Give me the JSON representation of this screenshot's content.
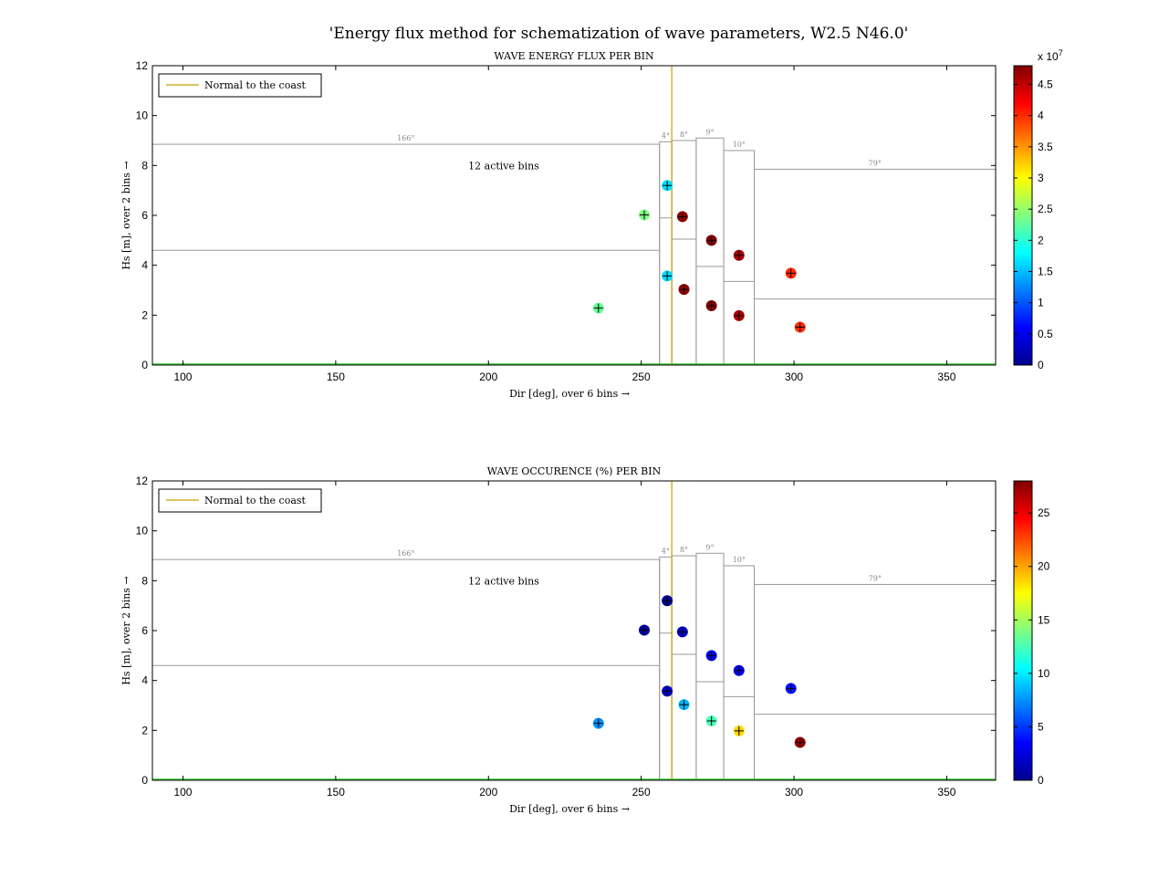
{
  "suptitle": "'Energy flux method for schematization of wave parameters, W2.5 N46.0'",
  "colors": {
    "normal_line": "#c8a000",
    "baseline": "#33cc33",
    "bin_edge": "#999999",
    "axes": "#000000"
  },
  "chart_data": [
    {
      "type": "scatter",
      "title": "WAVE ENERGY FLUX PER BIN",
      "xlabel": "Dir [deg], over 6 bins →",
      "ylabel": "Hs [m], over 2 bins →",
      "xlim": [
        90,
        366
      ],
      "ylim": [
        0,
        12
      ],
      "xticks": [
        100,
        150,
        200,
        250,
        300,
        350
      ],
      "yticks": [
        0,
        2,
        4,
        6,
        8,
        10,
        12
      ],
      "legend": {
        "label": "Normal to the coast",
        "position": "top-left"
      },
      "normal_to_coast": 260,
      "annotation": "12 active bins",
      "bins": [
        {
          "dir_range": [
            90,
            256
          ],
          "hs_split": 4.6,
          "hs_top": 8.85,
          "label": "166°"
        },
        {
          "dir_range": [
            256,
            260
          ],
          "hs_split": 5.9,
          "hs_top": 8.95,
          "label": "4°"
        },
        {
          "dir_range": [
            260,
            268
          ],
          "hs_split": 5.05,
          "hs_top": 9.0,
          "label": "8°"
        },
        {
          "dir_range": [
            268,
            277
          ],
          "hs_split": 3.95,
          "hs_top": 9.1,
          "label": "9°"
        },
        {
          "dir_range": [
            277,
            287
          ],
          "hs_split": 3.35,
          "hs_top": 8.6,
          "label": "10°"
        },
        {
          "dir_range": [
            287,
            366
          ],
          "hs_split": 2.65,
          "hs_top": 7.85,
          "label": "79°"
        }
      ],
      "colorbar": {
        "min": 0,
        "max": 48000000,
        "ticks": [
          0,
          0.5,
          1,
          1.5,
          2,
          2.5,
          3,
          3.5,
          4,
          4.5
        ],
        "tick_scale": 10000000,
        "multiplier_label": "x 10",
        "multiplier_exp": "7",
        "colormap": "jet"
      },
      "points": [
        {
          "x": 236,
          "y": 2.28,
          "c": 23000000
        },
        {
          "x": 251,
          "y": 6.02,
          "c": 24000000
        },
        {
          "x": 258.5,
          "y": 3.57,
          "c": 16500000
        },
        {
          "x": 258.5,
          "y": 7.2,
          "c": 16500000
        },
        {
          "x": 264,
          "y": 3.03,
          "c": 47000000
        },
        {
          "x": 263.5,
          "y": 5.95,
          "c": 47000000
        },
        {
          "x": 273,
          "y": 2.38,
          "c": 48000000
        },
        {
          "x": 273,
          "y": 5.0,
          "c": 48000000
        },
        {
          "x": 282,
          "y": 1.98,
          "c": 46000000
        },
        {
          "x": 282,
          "y": 4.4,
          "c": 46000000
        },
        {
          "x": 299,
          "y": 3.68,
          "c": 40000000
        },
        {
          "x": 302,
          "y": 1.52,
          "c": 40000000
        }
      ]
    },
    {
      "type": "scatter",
      "title": "WAVE OCCURENCE (%) PER BIN",
      "xlabel": "Dir [deg], over 6 bins →",
      "ylabel": "Hs [m], over 2 bins →",
      "xlim": [
        90,
        366
      ],
      "ylim": [
        0,
        12
      ],
      "xticks": [
        100,
        150,
        200,
        250,
        300,
        350
      ],
      "yticks": [
        0,
        2,
        4,
        6,
        8,
        10,
        12
      ],
      "legend": {
        "label": "Normal to the coast",
        "position": "top-left"
      },
      "normal_to_coast": 260,
      "annotation": "12 active bins",
      "bins": [
        {
          "dir_range": [
            90,
            256
          ],
          "hs_split": 4.6,
          "hs_top": 8.85,
          "label": "166°"
        },
        {
          "dir_range": [
            256,
            260
          ],
          "hs_split": 5.9,
          "hs_top": 8.95,
          "label": "4°"
        },
        {
          "dir_range": [
            260,
            268
          ],
          "hs_split": 5.05,
          "hs_top": 9.0,
          "label": "8°"
        },
        {
          "dir_range": [
            268,
            277
          ],
          "hs_split": 3.95,
          "hs_top": 9.1,
          "label": "9°"
        },
        {
          "dir_range": [
            277,
            287
          ],
          "hs_split": 3.35,
          "hs_top": 8.6,
          "label": "10°"
        },
        {
          "dir_range": [
            287,
            366
          ],
          "hs_split": 2.65,
          "hs_top": 7.85,
          "label": "79°"
        }
      ],
      "colorbar": {
        "min": 0,
        "max": 28,
        "ticks": [
          0,
          5,
          10,
          15,
          20,
          25
        ],
        "tick_scale": 1,
        "multiplier_label": "",
        "multiplier_exp": "",
        "colormap": "jet"
      },
      "points": [
        {
          "x": 236,
          "y": 2.28,
          "c": 7.5
        },
        {
          "x": 251,
          "y": 6.02,
          "c": 1.0
        },
        {
          "x": 258.5,
          "y": 3.57,
          "c": 2.0
        },
        {
          "x": 258.5,
          "y": 7.2,
          "c": 0.5
        },
        {
          "x": 264,
          "y": 3.03,
          "c": 8.5
        },
        {
          "x": 263.5,
          "y": 5.95,
          "c": 2.0
        },
        {
          "x": 273,
          "y": 2.38,
          "c": 12.5
        },
        {
          "x": 273,
          "y": 5.0,
          "c": 3.0
        },
        {
          "x": 282,
          "y": 1.98,
          "c": 18.5
        },
        {
          "x": 282,
          "y": 4.4,
          "c": 3.0
        },
        {
          "x": 299,
          "y": 3.68,
          "c": 4.0
        },
        {
          "x": 302,
          "y": 1.52,
          "c": 27.5
        }
      ]
    }
  ]
}
